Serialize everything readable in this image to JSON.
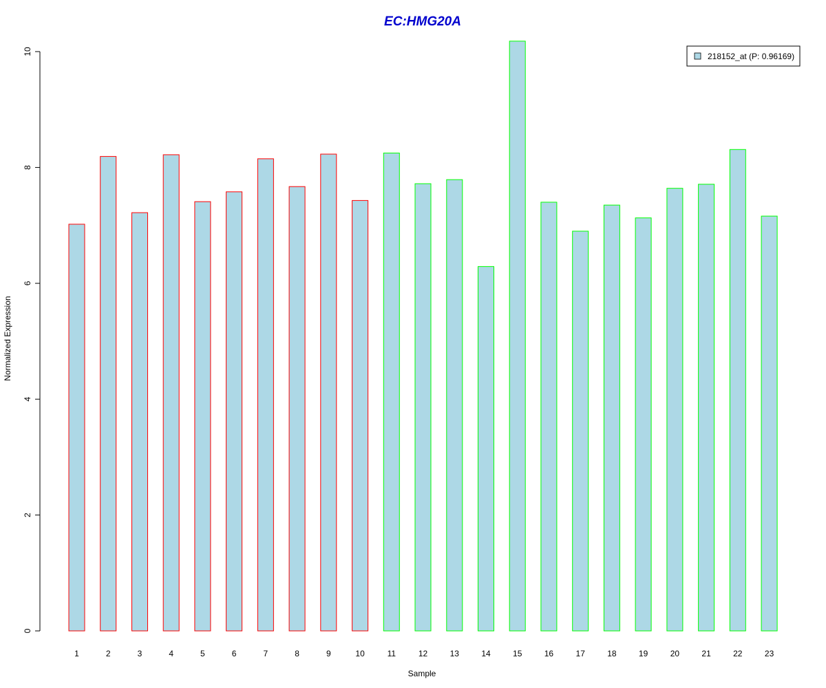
{
  "chart_data": {
    "type": "bar",
    "title": "EC:HMG20A",
    "xlabel": "Sample",
    "ylabel": "Normalized Expression",
    "categories": [
      "1",
      "2",
      "3",
      "4",
      "5",
      "6",
      "7",
      "8",
      "9",
      "10",
      "11",
      "12",
      "13",
      "14",
      "15",
      "16",
      "17",
      "18",
      "19",
      "20",
      "21",
      "22",
      "23"
    ],
    "values": [
      7.02,
      8.19,
      7.22,
      8.22,
      7.41,
      7.58,
      8.15,
      7.67,
      8.23,
      7.43,
      8.25,
      7.72,
      7.79,
      6.29,
      10.18,
      7.4,
      6.9,
      7.35,
      7.13,
      7.64,
      7.71,
      8.31,
      7.16
    ],
    "groups": [
      1,
      1,
      1,
      1,
      1,
      1,
      1,
      1,
      1,
      1,
      2,
      2,
      2,
      2,
      2,
      2,
      2,
      2,
      2,
      2,
      2,
      2,
      2
    ],
    "yticks": [
      0,
      2,
      4,
      6,
      8,
      10
    ],
    "ylim": [
      0,
      10.2
    ],
    "grid": false,
    "legend": {
      "label": "218152_at (P: 0.96169)",
      "placement": "top-right"
    },
    "colors": {
      "bar_fill": "#add8e6",
      "group1_border": "#ff0000",
      "group2_border": "#00ff00",
      "title": "#0000cd",
      "axis": "#000000"
    }
  }
}
